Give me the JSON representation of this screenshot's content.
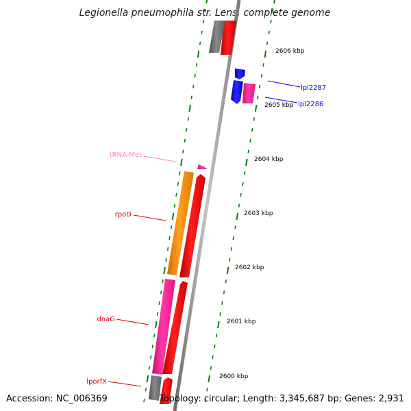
{
  "title": "Legionella pneumophila str. Lens, complete genome",
  "footer": {
    "accession": "Accession: NC_006369",
    "summary": "Topology: circular; Length: 3,345,687 bp; Genes: 2,931"
  },
  "scale": {
    "unit": "kbp",
    "ticks": [
      {
        "position_kbp": 2606,
        "label": "2606 kbp"
      },
      {
        "position_kbp": 2605,
        "label": "2605 kbp"
      },
      {
        "position_kbp": 2604,
        "label": "2604 kbp"
      },
      {
        "position_kbp": 2603,
        "label": "2603 kbp"
      },
      {
        "position_kbp": 2602,
        "label": "2602 kbp"
      },
      {
        "position_kbp": 2601,
        "label": "2601 kbp"
      },
      {
        "position_kbp": 2600,
        "label": "2600 kbp"
      }
    ]
  },
  "genes": [
    {
      "name": "lpl2287",
      "color": "#0000ff"
    },
    {
      "name": "lpl2286",
      "color": "#0000ff"
    },
    {
      "name": "tRNA-Met",
      "color": "#ff88bb"
    },
    {
      "name": "rpoD",
      "color": "#dd0000"
    },
    {
      "name": "dnaG",
      "color": "#dd0000"
    },
    {
      "name": "lporfX",
      "color": "#dd0000"
    }
  ],
  "colors": {
    "backbone": "#9a9a9a",
    "cds": "#ff0000",
    "orange": "#ff8c00",
    "magenta": "#ff1493",
    "grey": "#6f6f6f",
    "blue": "#0000ff",
    "trna": "#ff88bb",
    "tick": "#008000"
  }
}
